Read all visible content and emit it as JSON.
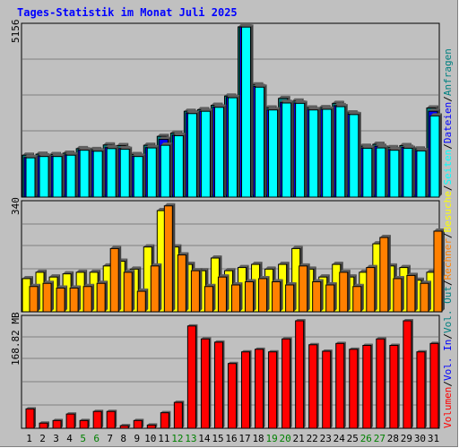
{
  "chart_data": {
    "title": "Tages-Statistik im Monat Juli 2025",
    "days": [
      "1",
      "2",
      "3",
      "4",
      "5",
      "6",
      "7",
      "8",
      "9",
      "10",
      "11",
      "12",
      "13",
      "14",
      "15",
      "16",
      "17",
      "18",
      "19",
      "20",
      "21",
      "22",
      "23",
      "24",
      "25",
      "26",
      "27",
      "28",
      "29",
      "30",
      "31"
    ],
    "weekend_days": [
      "5",
      "6",
      "12",
      "13",
      "19",
      "20",
      "26",
      "27"
    ],
    "colors": {
      "anfragen": "#008080",
      "dateien": "#0000ff",
      "seiten": "#00ffff",
      "besuche": "#ffff00",
      "rechner": "#ff8000",
      "volumen": "#ff0000",
      "vol_in": "#0000ff",
      "vol_out": "#008080",
      "weekday_label": "#000000",
      "weekend_label": "#008000"
    },
    "panels": [
      {
        "type": "bar",
        "ymax_label": "5156",
        "ylim": [
          0,
          5156
        ],
        "series": [
          {
            "name": "Anfragen",
            "values": [
              1270,
              1300,
              1290,
              1330,
              1470,
              1440,
              1580,
              1560,
              1290,
              1570,
              1840,
              1940,
              2600,
              2650,
              2780,
              3060,
              5156,
              3400,
              2700,
              2990,
              2910,
              2700,
              2710,
              2840,
              2550,
              1540,
              1600,
              1500,
              1560,
              1460,
              2700
            ]
          },
          {
            "name": "Dateien",
            "values": [
              1200,
              1250,
              1240,
              1280,
              1430,
              1400,
              1500,
              1470,
              1240,
              1500,
              1750,
              1880,
              2550,
              2600,
              2730,
              3020,
              5156,
              3350,
              2640,
              2870,
              2850,
              2650,
              2660,
              2770,
              2510,
              1490,
              1540,
              1440,
              1510,
              1410,
              2600
            ]
          },
          {
            "name": "Seiten",
            "values": [
              1190,
              1230,
              1230,
              1270,
              1420,
              1390,
              1470,
              1450,
              1230,
              1490,
              1570,
              1860,
              2530,
              2600,
              2720,
              3010,
              5150,
              3330,
              2640,
              2850,
              2840,
              2640,
              2660,
              2740,
              2500,
              1480,
              1490,
              1420,
              1480,
              1400,
              2460
            ]
          }
        ]
      },
      {
        "type": "bar",
        "ymax_label": "340",
        "ylim": [
          0,
          340
        ],
        "series": [
          {
            "name": "Besuche",
            "values": [
              105,
              125,
              110,
              120,
              125,
              125,
              145,
              160,
              135,
              205,
              320,
              205,
              150,
              130,
              170,
              130,
              140,
              150,
              135,
              150,
              200,
              135,
              110,
              150,
              110,
              125,
              215,
              145,
              140,
              100,
              125
            ]
          },
          {
            "name": "Rechner",
            "values": [
              80,
              90,
              75,
              75,
              80,
              90,
              200,
              125,
              65,
              145,
              335,
              180,
              130,
              80,
              110,
              85,
              95,
              105,
              95,
              85,
              145,
              95,
              85,
              125,
              80,
              140,
              235,
              105,
              115,
              90,
              255
            ]
          }
        ]
      },
      {
        "type": "bar",
        "ymax_label": "168.82 MB",
        "ylim": [
          0,
          168.82
        ],
        "series": [
          {
            "name": "Volumen",
            "values": [
              30,
              8,
              12,
              22,
              12,
              26,
              26,
              4,
              12,
              5,
              24,
              40,
              158,
              138,
              133,
              100,
              118,
              122,
              118,
              138,
              166,
              129,
              119,
              131,
              122,
              128,
              138,
              128,
              166,
              118,
              131
            ]
          }
        ]
      }
    ],
    "legend": [
      "Anfragen",
      "Dateien",
      "Seiten",
      "Besuche",
      "Rechner",
      "Vol. Out",
      "Vol. In",
      "Volumen"
    ]
  }
}
